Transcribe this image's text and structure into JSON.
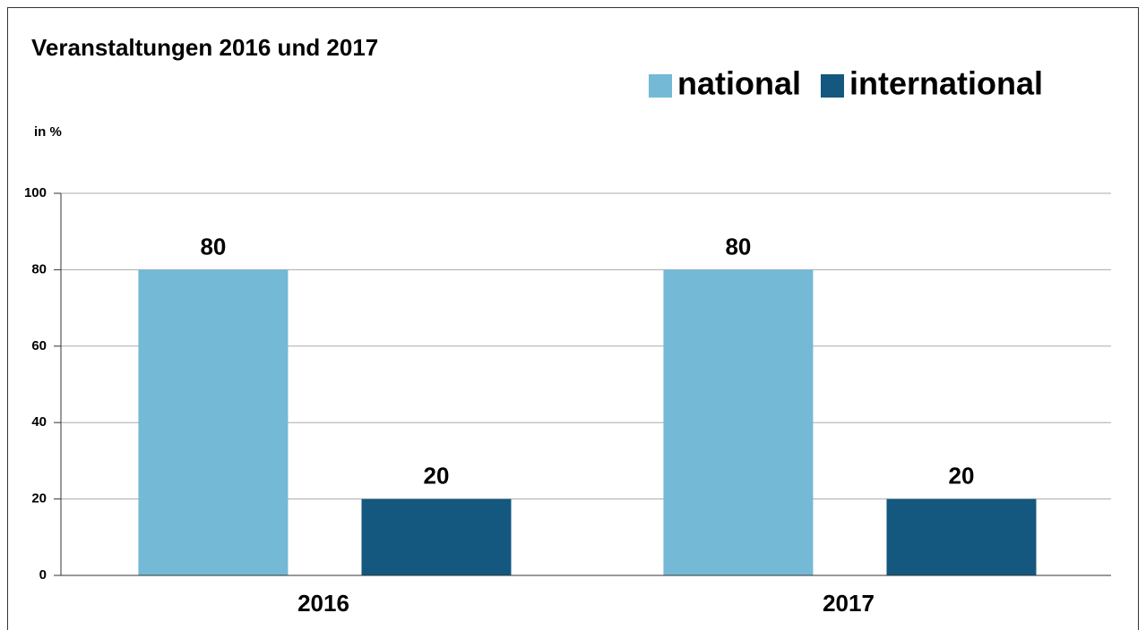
{
  "chart_data": {
    "type": "bar",
    "title": "Veranstaltungen 2016 und 2017",
    "y_label": "in %",
    "categories": [
      "2016",
      "2017"
    ],
    "series": [
      {
        "name": "national",
        "color": "#74b9d6",
        "values": [
          80,
          80
        ]
      },
      {
        "name": "international",
        "color": "#14577f",
        "values": [
          20,
          20
        ]
      }
    ],
    "ylim": [
      0,
      100
    ],
    "yticks": [
      0,
      20,
      40,
      60,
      80,
      100
    ],
    "grid": true,
    "show_value_labels": true
  }
}
